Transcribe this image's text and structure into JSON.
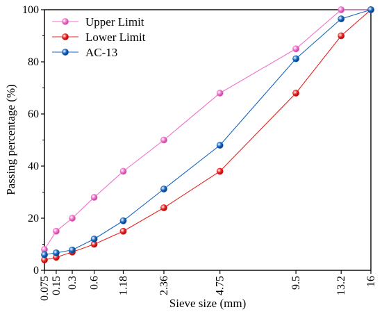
{
  "chart_data": {
    "type": "line",
    "title": "",
    "xlabel": "Sieve size (mm)",
    "ylabel": "Passing percentage (%)",
    "x_scale": "power-0.45",
    "x": [
      0.075,
      0.15,
      0.3,
      0.6,
      1.18,
      2.36,
      4.75,
      9.5,
      13.2,
      16
    ],
    "x_tick_labels": [
      "0.075",
      "0.15",
      "0.3",
      "0.6",
      "1.18",
      "2.36",
      "4.75",
      "9.5",
      "13.2",
      "16"
    ],
    "ylim": [
      0,
      100
    ],
    "y_ticks": [
      0,
      20,
      40,
      60,
      80,
      100
    ],
    "grid": false,
    "legend_position": "top-left",
    "series": [
      {
        "name": "Upper Limit",
        "color": "#F06FC8",
        "values": [
          8,
          15,
          20,
          28,
          38,
          50,
          68,
          85,
          100,
          100
        ]
      },
      {
        "name": "Lower Limit",
        "color": "#E8211F",
        "values": [
          4,
          5,
          7,
          10,
          15,
          24,
          38,
          68,
          90,
          100
        ]
      },
      {
        "name": "AC-13",
        "color": "#1565C0",
        "values": [
          6,
          6.7,
          7.8,
          12,
          19,
          31.2,
          48,
          81.2,
          96.5,
          100
        ]
      }
    ]
  }
}
